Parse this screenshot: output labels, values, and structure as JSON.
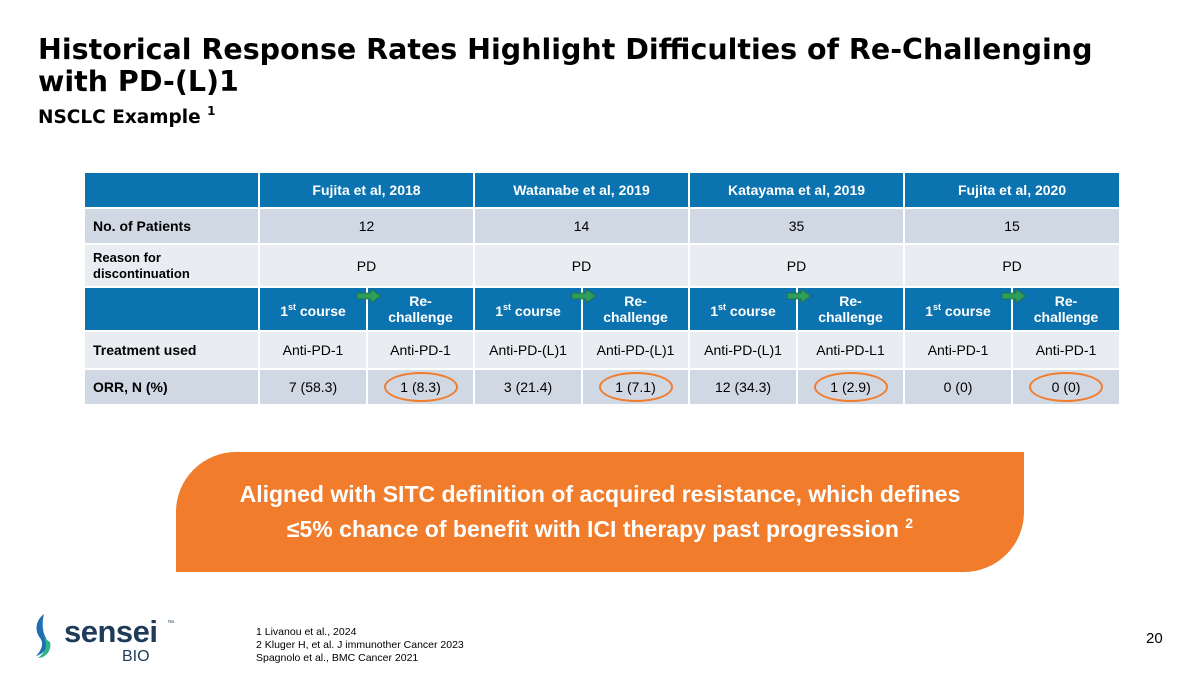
{
  "title": "Historical Response Rates Highlight Difficulties of Re-Challenging with PD-(L)1",
  "subtitle": "NSCLC Example",
  "subtitle_ref": "1",
  "table": {
    "studies": [
      "Fujita et al, 2018",
      "Watanabe et al, 2019",
      "Katayama et al, 2019",
      "Fujita et al, 2020"
    ],
    "patients_label": "No. of Patients",
    "patients": [
      "12",
      "14",
      "35",
      "15"
    ],
    "reason_label": "Reason for discontinuation",
    "reasons": [
      "PD",
      "PD",
      "PD",
      "PD"
    ],
    "course_prefix": "1",
    "course_sup": "st",
    "course_suffix": " course",
    "rechallenge_line1": "Re-",
    "rechallenge_line2": "challenge",
    "treatment_label": "Treatment used",
    "treatments": [
      "Anti-PD-1",
      "Anti-PD-1",
      "Anti-PD-(L)1",
      "Anti-PD-(L)1",
      "Anti-PD-(L)1",
      "Anti-PD-L1",
      "Anti-PD-1",
      "Anti-PD-1"
    ],
    "orr_label": "ORR, N (%)",
    "orr": [
      "7 (58.3)",
      "1 (8.3)",
      "3 (21.4)",
      "1 (7.1)",
      "12 (34.3)",
      "1 (2.9)",
      "0 (0)",
      "0 (0)"
    ]
  },
  "callout": {
    "line1": "Aligned with SITC definition of acquired resistance, which defines",
    "line2": "≤5% chance of benefit with ICI therapy past progression",
    "ref": "2"
  },
  "logo": {
    "name": "sensei",
    "suffix": "BIO",
    "tm": "™"
  },
  "references": [
    "1 Livanou et al., 2024",
    "2 Kluger H, et al. J immunother Cancer 2023",
    "Spagnolo et al., BMC Cancer 2021"
  ],
  "page_number": "20",
  "colors": {
    "header_blue": "#0b73b0",
    "accent_orange": "#f07c2c",
    "row_dark": "#d0d8e4",
    "row_light": "#e9ecf1",
    "arrow_green": "#2e9e5b"
  }
}
